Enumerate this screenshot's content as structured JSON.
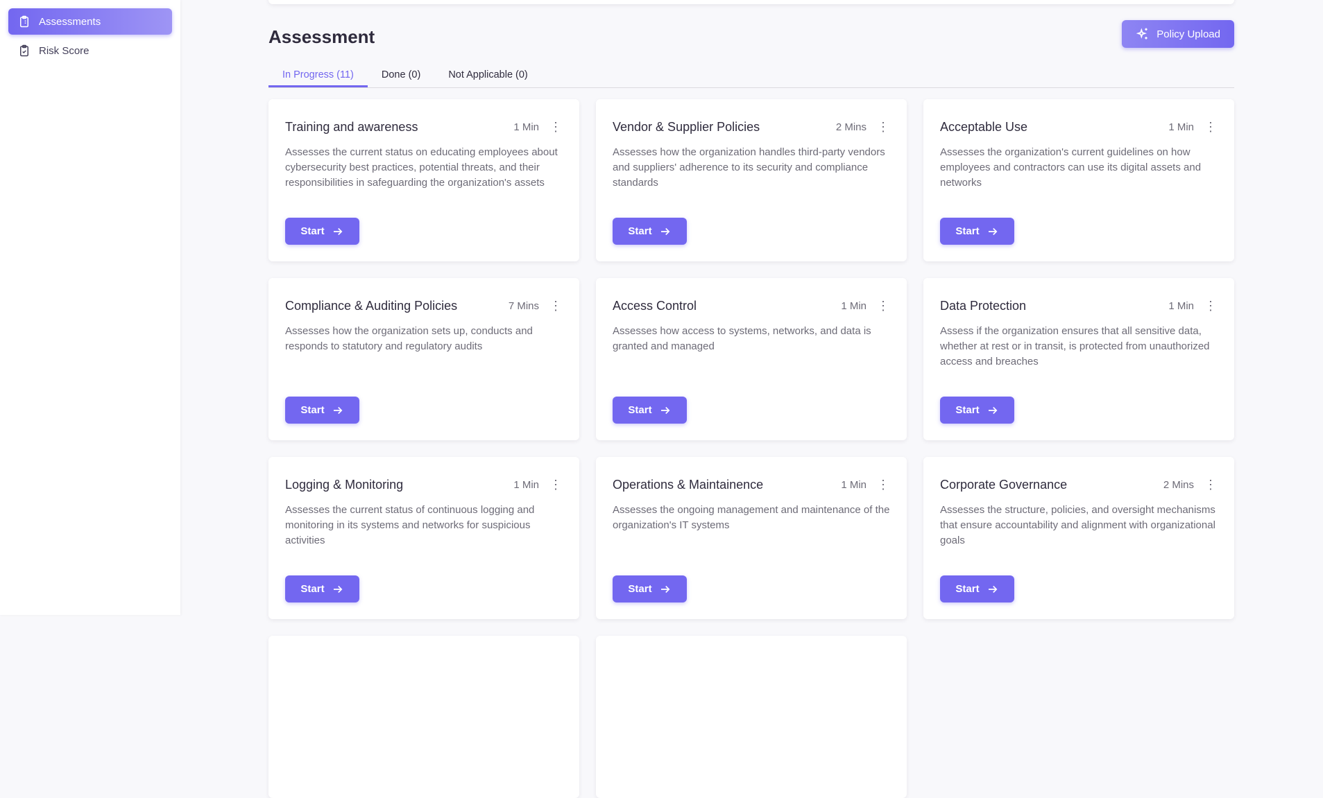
{
  "sidebar": {
    "items": [
      {
        "label": "Assessments",
        "icon": "clipboard-list-icon",
        "active": true
      },
      {
        "label": "Risk Score",
        "icon": "clipboard-check-icon",
        "active": false
      }
    ]
  },
  "header": {
    "title": "Assessment",
    "policy_upload_label": "Policy Upload",
    "policy_upload_icon": "sparkles-icon"
  },
  "tabs": [
    {
      "label": "In Progress (11)",
      "active": true
    },
    {
      "label": "Done (0)"
    },
    {
      "label": "Not Applicable (0)"
    }
  ],
  "accent": "#7367f0",
  "cards": [
    {
      "title": "Training and awareness",
      "duration": "1 Min",
      "description": "Assesses the current status on educating employees about cybersecurity best practices, potential threats, and their responsibilities in safeguarding the organization's assets",
      "button": "Start"
    },
    {
      "title": "Vendor & Supplier Policies",
      "duration": "2 Mins",
      "description": "Assesses how the organization handles third-party vendors and suppliers' adherence to its security and compliance standards",
      "button": "Start"
    },
    {
      "title": "Acceptable Use",
      "duration": "1 Min",
      "description": "Assesses the organization's current guidelines on how employees and contractors can use its digital assets and networks",
      "button": "Start"
    },
    {
      "title": "Compliance & Auditing Policies",
      "duration": "7 Mins",
      "description": "Assesses how the organization sets up, conducts and responds to statutory and regulatory audits",
      "button": "Start"
    },
    {
      "title": "Access Control",
      "duration": "1 Min",
      "description": "Assesses how access to systems, networks, and data is granted and managed",
      "button": "Start"
    },
    {
      "title": "Data Protection",
      "duration": "1 Min",
      "description": "Assess if the organization ensures that all sensitive data, whether at rest or in transit, is protected from unauthorized access and breaches",
      "button": "Start"
    },
    {
      "title": "Logging & Monitoring",
      "duration": "1 Min",
      "description": "Assesses the current status of continuous logging and monitoring in its systems and networks for suspicious activities",
      "button": "Start"
    },
    {
      "title": "Operations & Maintainence",
      "duration": "1 Min",
      "description": "Assesses the ongoing management and maintenance of the organization's IT systems",
      "button": "Start"
    },
    {
      "title": "Corporate Governance",
      "duration": "2 Mins",
      "description": "Assesses the structure, policies, and oversight mechanisms that ensure accountability and alignment with organizational goals",
      "button": "Start"
    }
  ]
}
